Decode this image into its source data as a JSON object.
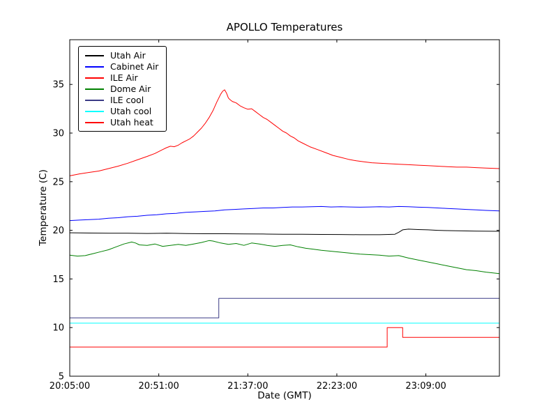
{
  "figure": {
    "background": "#ffffff"
  },
  "chart_data": {
    "type": "line",
    "title": "APOLLO Temperatures",
    "xlabel": "Date (GMT)",
    "ylabel": "Temperature (C)",
    "x_unit": "minutes since 20:05:00 GMT",
    "xlim": [
      0,
      222
    ],
    "ylim": [
      5,
      39.6
    ],
    "yticks": [
      5,
      10,
      15,
      20,
      25,
      30,
      35
    ],
    "xticks": [
      {
        "t": 0,
        "label": "20:05:00"
      },
      {
        "t": 46,
        "label": "20:51:00"
      },
      {
        "t": 92,
        "label": "21:37:00"
      },
      {
        "t": 138,
        "label": "22:23:00"
      },
      {
        "t": 184,
        "label": "23:09:00"
      }
    ],
    "grid": false,
    "legend_position": "upper left",
    "series": [
      {
        "name": "Utah Air",
        "color": "#000000",
        "points": [
          [
            0,
            19.75
          ],
          [
            10,
            19.72
          ],
          [
            20,
            19.7
          ],
          [
            30,
            19.7
          ],
          [
            40,
            19.68
          ],
          [
            50,
            19.7
          ],
          [
            60,
            19.67
          ],
          [
            70,
            19.65
          ],
          [
            80,
            19.65
          ],
          [
            90,
            19.63
          ],
          [
            100,
            19.62
          ],
          [
            110,
            19.6
          ],
          [
            120,
            19.6
          ],
          [
            130,
            19.58
          ],
          [
            140,
            19.57
          ],
          [
            150,
            19.55
          ],
          [
            160,
            19.55
          ],
          [
            168,
            19.6
          ],
          [
            170,
            19.8
          ],
          [
            172,
            20.05
          ],
          [
            175,
            20.12
          ],
          [
            180,
            20.08
          ],
          [
            185,
            20.05
          ],
          [
            190,
            20.0
          ],
          [
            195,
            19.97
          ],
          [
            200,
            19.95
          ],
          [
            210,
            19.92
          ],
          [
            222,
            19.9
          ]
        ]
      },
      {
        "name": "Cabinet Air",
        "color": "#0000ff",
        "points": [
          [
            0,
            21.0
          ],
          [
            5,
            21.05
          ],
          [
            10,
            21.1
          ],
          [
            15,
            21.15
          ],
          [
            20,
            21.25
          ],
          [
            25,
            21.3
          ],
          [
            30,
            21.4
          ],
          [
            35,
            21.45
          ],
          [
            40,
            21.55
          ],
          [
            45,
            21.6
          ],
          [
            50,
            21.7
          ],
          [
            55,
            21.75
          ],
          [
            60,
            21.85
          ],
          [
            65,
            21.9
          ],
          [
            70,
            21.95
          ],
          [
            75,
            22.0
          ],
          [
            80,
            22.1
          ],
          [
            85,
            22.15
          ],
          [
            90,
            22.2
          ],
          [
            95,
            22.25
          ],
          [
            100,
            22.3
          ],
          [
            105,
            22.3
          ],
          [
            110,
            22.35
          ],
          [
            115,
            22.4
          ],
          [
            120,
            22.4
          ],
          [
            125,
            22.42
          ],
          [
            130,
            22.45
          ],
          [
            135,
            22.4
          ],
          [
            140,
            22.42
          ],
          [
            145,
            22.4
          ],
          [
            150,
            22.38
          ],
          [
            155,
            22.4
          ],
          [
            160,
            22.42
          ],
          [
            165,
            22.4
          ],
          [
            170,
            22.45
          ],
          [
            175,
            22.42
          ],
          [
            180,
            22.38
          ],
          [
            185,
            22.35
          ],
          [
            190,
            22.3
          ],
          [
            195,
            22.25
          ],
          [
            200,
            22.2
          ],
          [
            205,
            22.15
          ],
          [
            210,
            22.1
          ],
          [
            215,
            22.05
          ],
          [
            222,
            22.0
          ]
        ]
      },
      {
        "name": "ILE Air",
        "color": "#ff0000",
        "points": [
          [
            0,
            25.6
          ],
          [
            5,
            25.8
          ],
          [
            10,
            25.95
          ],
          [
            15,
            26.1
          ],
          [
            20,
            26.35
          ],
          [
            25,
            26.6
          ],
          [
            30,
            26.9
          ],
          [
            35,
            27.25
          ],
          [
            40,
            27.6
          ],
          [
            44,
            27.9
          ],
          [
            48,
            28.3
          ],
          [
            50,
            28.5
          ],
          [
            52,
            28.65
          ],
          [
            54,
            28.6
          ],
          [
            56,
            28.75
          ],
          [
            58,
            29.0
          ],
          [
            60,
            29.2
          ],
          [
            62,
            29.4
          ],
          [
            64,
            29.7
          ],
          [
            66,
            30.1
          ],
          [
            68,
            30.5
          ],
          [
            70,
            31.0
          ],
          [
            72,
            31.6
          ],
          [
            74,
            32.3
          ],
          [
            76,
            33.2
          ],
          [
            78,
            34.0
          ],
          [
            79,
            34.3
          ],
          [
            80,
            34.45
          ],
          [
            81,
            34.1
          ],
          [
            82,
            33.6
          ],
          [
            83,
            33.4
          ],
          [
            84,
            33.25
          ],
          [
            86,
            33.1
          ],
          [
            88,
            32.8
          ],
          [
            90,
            32.6
          ],
          [
            92,
            32.45
          ],
          [
            94,
            32.5
          ],
          [
            96,
            32.2
          ],
          [
            98,
            31.9
          ],
          [
            100,
            31.6
          ],
          [
            102,
            31.4
          ],
          [
            104,
            31.1
          ],
          [
            106,
            30.8
          ],
          [
            108,
            30.5
          ],
          [
            110,
            30.2
          ],
          [
            112,
            30.0
          ],
          [
            114,
            29.7
          ],
          [
            116,
            29.5
          ],
          [
            118,
            29.2
          ],
          [
            120,
            29.0
          ],
          [
            124,
            28.6
          ],
          [
            128,
            28.3
          ],
          [
            132,
            28.0
          ],
          [
            136,
            27.7
          ],
          [
            140,
            27.5
          ],
          [
            144,
            27.3
          ],
          [
            148,
            27.15
          ],
          [
            152,
            27.05
          ],
          [
            156,
            26.95
          ],
          [
            160,
            26.9
          ],
          [
            165,
            26.85
          ],
          [
            170,
            26.8
          ],
          [
            175,
            26.75
          ],
          [
            180,
            26.7
          ],
          [
            185,
            26.65
          ],
          [
            190,
            26.6
          ],
          [
            195,
            26.55
          ],
          [
            200,
            26.5
          ],
          [
            205,
            26.5
          ],
          [
            210,
            26.45
          ],
          [
            215,
            26.4
          ],
          [
            222,
            26.35
          ]
        ]
      },
      {
        "name": "Dome Air",
        "color": "#008000",
        "points": [
          [
            0,
            17.45
          ],
          [
            4,
            17.35
          ],
          [
            8,
            17.4
          ],
          [
            12,
            17.6
          ],
          [
            16,
            17.8
          ],
          [
            20,
            18.0
          ],
          [
            24,
            18.3
          ],
          [
            28,
            18.6
          ],
          [
            32,
            18.8
          ],
          [
            34,
            18.7
          ],
          [
            36,
            18.5
          ],
          [
            40,
            18.45
          ],
          [
            44,
            18.6
          ],
          [
            48,
            18.35
          ],
          [
            52,
            18.45
          ],
          [
            56,
            18.55
          ],
          [
            60,
            18.45
          ],
          [
            64,
            18.6
          ],
          [
            68,
            18.75
          ],
          [
            72,
            18.95
          ],
          [
            74,
            18.9
          ],
          [
            78,
            18.7
          ],
          [
            82,
            18.55
          ],
          [
            86,
            18.65
          ],
          [
            90,
            18.45
          ],
          [
            94,
            18.7
          ],
          [
            98,
            18.6
          ],
          [
            102,
            18.45
          ],
          [
            106,
            18.35
          ],
          [
            110,
            18.45
          ],
          [
            114,
            18.5
          ],
          [
            118,
            18.3
          ],
          [
            122,
            18.15
          ],
          [
            126,
            18.05
          ],
          [
            130,
            17.95
          ],
          [
            135,
            17.85
          ],
          [
            140,
            17.75
          ],
          [
            145,
            17.65
          ],
          [
            150,
            17.55
          ],
          [
            155,
            17.5
          ],
          [
            160,
            17.45
          ],
          [
            165,
            17.35
          ],
          [
            170,
            17.4
          ],
          [
            175,
            17.15
          ],
          [
            180,
            16.95
          ],
          [
            185,
            16.75
          ],
          [
            190,
            16.55
          ],
          [
            195,
            16.35
          ],
          [
            200,
            16.15
          ],
          [
            205,
            15.95
          ],
          [
            210,
            15.85
          ],
          [
            215,
            15.7
          ],
          [
            222,
            15.55
          ]
        ]
      },
      {
        "name": "ILE cool",
        "color": "#3a3a85",
        "points": [
          [
            0,
            11.0
          ],
          [
            77,
            11.0
          ],
          [
            77,
            13.0
          ],
          [
            222,
            13.0
          ]
        ]
      },
      {
        "name": "Utah cool",
        "color": "#00ffff",
        "points": [
          [
            0,
            10.45
          ],
          [
            222,
            10.45
          ]
        ]
      },
      {
        "name": "Utah heat",
        "color": "#ff0000",
        "points": [
          [
            0,
            8.0
          ],
          [
            164,
            8.0
          ],
          [
            164,
            10.0
          ],
          [
            172,
            10.0
          ],
          [
            172,
            9.0
          ],
          [
            222,
            9.0
          ]
        ]
      }
    ]
  }
}
